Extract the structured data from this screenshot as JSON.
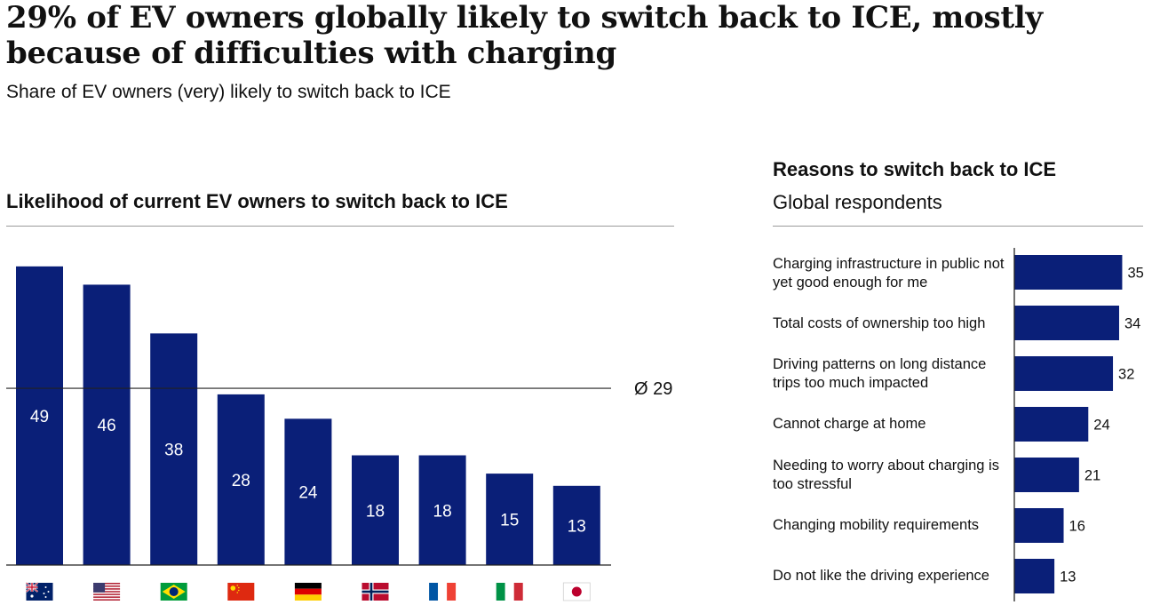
{
  "header": {
    "title": "29% of EV owners globally likely to switch back to ICE, mostly because of difficulties with charging",
    "subtitle": "Share of EV owners (very) likely to switch back to ICE"
  },
  "left_panel": {
    "heading": "Likelihood of current EV owners to switch back to ICE"
  },
  "right_panel": {
    "heading": "Reasons to switch back to ICE",
    "subheading": "Global respondents"
  },
  "colors": {
    "bar": "#0a1f78",
    "axis": "#222222",
    "rule": "#9a9a9a"
  },
  "chart_data": [
    {
      "type": "bar",
      "title": "Likelihood of current EV owners to switch back to ICE",
      "categories": [
        "Australia flag",
        "United States flag",
        "Brazil flag",
        "China flag",
        "Germany flag",
        "Norway flag",
        "France flag",
        "Italy flag",
        "Japan flag"
      ],
      "values": [
        49,
        46,
        38,
        28,
        24,
        18,
        18,
        15,
        13
      ],
      "reference_line": {
        "value": 29,
        "label": "Ø 29"
      },
      "ylim": [
        0,
        50
      ],
      "grid": false
    },
    {
      "type": "bar",
      "orientation": "horizontal",
      "title": "Reasons to switch back to ICE",
      "subtitle": "Global respondents",
      "categories": [
        "Charging infrastructure in public not yet good enough for me",
        "Total costs of ownership too high",
        "Driving patterns on long distance trips too much impacted",
        "Cannot charge at home",
        "Needing to worry about charging is too stressful",
        "Changing mobility requirements",
        "Do not like the driving experience"
      ],
      "values": [
        35,
        34,
        32,
        24,
        21,
        16,
        13
      ],
      "xlim": [
        0,
        40
      ],
      "grid": false
    }
  ]
}
